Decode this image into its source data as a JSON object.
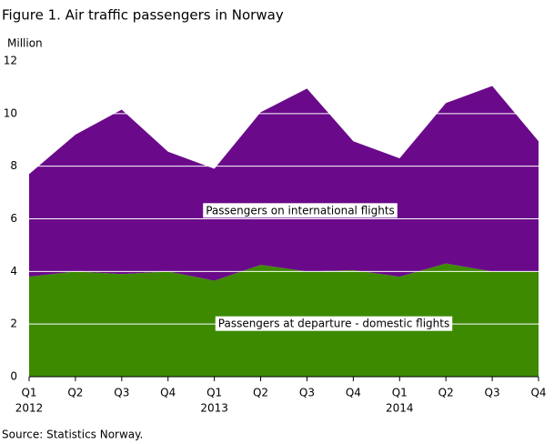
{
  "chart_data": {
    "type": "stacked_area",
    "title": "Figure 1. Air traffic passengers in Norway",
    "y_label": "Million",
    "source": "Source: Statistics Norway.",
    "categories": [
      "Q1",
      "Q2",
      "Q3",
      "Q4",
      "Q1",
      "Q2",
      "Q3",
      "Q4",
      "Q1",
      "Q2",
      "Q3",
      "Q4"
    ],
    "years": [
      "2012",
      null,
      null,
      null,
      "2013",
      null,
      null,
      null,
      "2014",
      null,
      null,
      null
    ],
    "series": [
      {
        "name": "Passengers  at departure  - domestic flights",
        "color": "#3d8a00",
        "values": [
          3.8,
          4.0,
          3.9,
          4.0,
          3.65,
          4.25,
          4.0,
          4.05,
          3.8,
          4.3,
          4.0,
          4.0
        ]
      },
      {
        "name": "Passengers  on international  flights",
        "color": "#6a0a8a",
        "values": [
          3.9,
          5.2,
          6.25,
          4.55,
          4.25,
          5.8,
          6.95,
          4.9,
          4.5,
          6.1,
          7.05,
          4.95
        ]
      }
    ],
    "ylim": [
      0,
      12
    ],
    "yticks": [
      0,
      2,
      4,
      6,
      8,
      10,
      12
    ],
    "grid": true
  }
}
